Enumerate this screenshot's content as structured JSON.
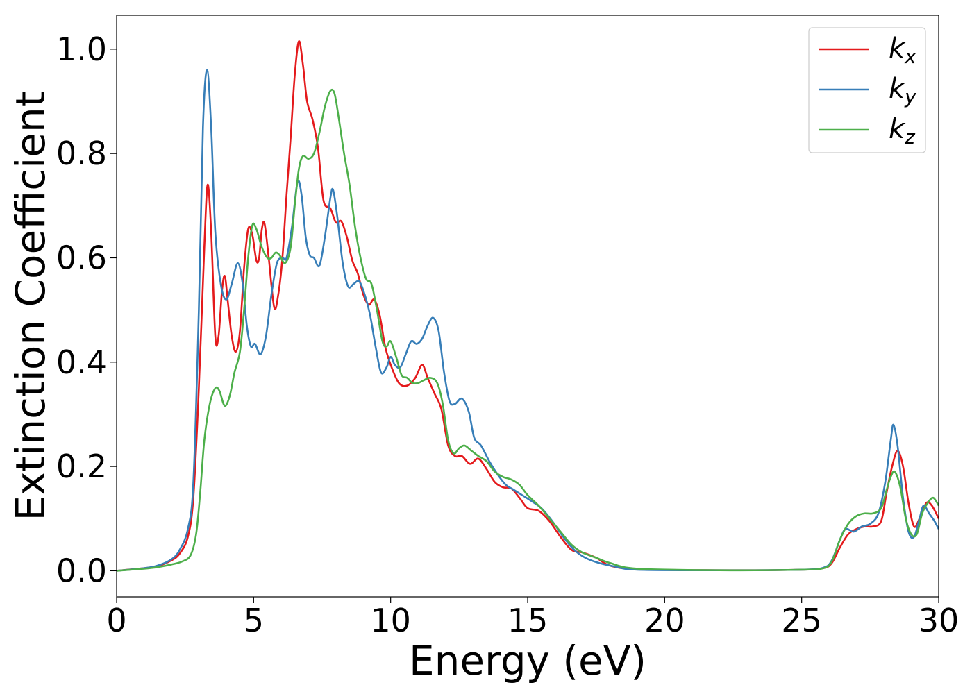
{
  "chart_data": {
    "type": "line",
    "xlabel": "Energy (eV)",
    "ylabel": "Extinction Coefficient",
    "xlim": [
      0,
      30
    ],
    "ylim": [
      -0.05,
      1.065
    ],
    "xticks": [
      0,
      5,
      10,
      15,
      20,
      25,
      30
    ],
    "xtick_labels": [
      "0",
      "5",
      "10",
      "15",
      "20",
      "25",
      "30"
    ],
    "yticks": [
      0.0,
      0.2,
      0.4,
      0.6,
      0.8,
      1.0
    ],
    "ytick_labels": [
      "0.0",
      "0.2",
      "0.4",
      "0.6",
      "0.8",
      "1.0"
    ],
    "grid": false,
    "legend_position": "top-right",
    "series": [
      {
        "name": "k",
        "subscript": "x",
        "color": "#e41a1c",
        "points": [
          [
            0,
            0.0
          ],
          [
            1,
            0.005
          ],
          [
            1.5,
            0.009
          ],
          [
            2,
            0.02
          ],
          [
            2.3,
            0.033
          ],
          [
            2.6,
            0.065
          ],
          [
            2.8,
            0.14
          ],
          [
            3.0,
            0.35
          ],
          [
            3.2,
            0.62
          ],
          [
            3.32,
            0.74
          ],
          [
            3.45,
            0.65
          ],
          [
            3.6,
            0.45
          ],
          [
            3.72,
            0.45
          ],
          [
            3.85,
            0.54
          ],
          [
            3.95,
            0.565
          ],
          [
            4.05,
            0.52
          ],
          [
            4.2,
            0.45
          ],
          [
            4.35,
            0.42
          ],
          [
            4.5,
            0.46
          ],
          [
            4.65,
            0.58
          ],
          [
            4.8,
            0.655
          ],
          [
            4.95,
            0.645
          ],
          [
            5.1,
            0.595
          ],
          [
            5.2,
            0.6
          ],
          [
            5.3,
            0.655
          ],
          [
            5.4,
            0.665
          ],
          [
            5.55,
            0.6
          ],
          [
            5.75,
            0.505
          ],
          [
            5.9,
            0.53
          ],
          [
            6.05,
            0.6
          ],
          [
            6.2,
            0.72
          ],
          [
            6.35,
            0.83
          ],
          [
            6.5,
            0.95
          ],
          [
            6.65,
            1.015
          ],
          [
            6.8,
            0.97
          ],
          [
            6.95,
            0.9
          ],
          [
            7.15,
            0.865
          ],
          [
            7.35,
            0.81
          ],
          [
            7.55,
            0.71
          ],
          [
            7.8,
            0.695
          ],
          [
            8.0,
            0.668
          ],
          [
            8.2,
            0.67
          ],
          [
            8.4,
            0.64
          ],
          [
            8.6,
            0.595
          ],
          [
            8.8,
            0.57
          ],
          [
            9.0,
            0.53
          ],
          [
            9.2,
            0.51
          ],
          [
            9.4,
            0.52
          ],
          [
            9.6,
            0.49
          ],
          [
            9.8,
            0.43
          ],
          [
            10.0,
            0.395
          ],
          [
            10.3,
            0.36
          ],
          [
            10.6,
            0.355
          ],
          [
            10.9,
            0.37
          ],
          [
            11.15,
            0.395
          ],
          [
            11.35,
            0.37
          ],
          [
            11.6,
            0.34
          ],
          [
            11.85,
            0.31
          ],
          [
            12.1,
            0.24
          ],
          [
            12.35,
            0.22
          ],
          [
            12.6,
            0.22
          ],
          [
            12.9,
            0.205
          ],
          [
            13.2,
            0.215
          ],
          [
            13.5,
            0.195
          ],
          [
            13.8,
            0.17
          ],
          [
            14.1,
            0.16
          ],
          [
            14.4,
            0.158
          ],
          [
            14.7,
            0.14
          ],
          [
            15.0,
            0.12
          ],
          [
            15.4,
            0.115
          ],
          [
            15.8,
            0.095
          ],
          [
            16.2,
            0.065
          ],
          [
            16.6,
            0.04
          ],
          [
            17.0,
            0.035
          ],
          [
            17.5,
            0.025
          ],
          [
            18.0,
            0.01
          ],
          [
            19.0,
            0.003
          ],
          [
            22.0,
            0.001
          ],
          [
            25.0,
            0.002
          ],
          [
            25.8,
            0.005
          ],
          [
            26.1,
            0.015
          ],
          [
            26.4,
            0.045
          ],
          [
            26.7,
            0.07
          ],
          [
            27.0,
            0.08
          ],
          [
            27.3,
            0.085
          ],
          [
            27.6,
            0.085
          ],
          [
            27.9,
            0.095
          ],
          [
            28.1,
            0.15
          ],
          [
            28.3,
            0.2
          ],
          [
            28.5,
            0.23
          ],
          [
            28.7,
            0.2
          ],
          [
            28.9,
            0.13
          ],
          [
            29.1,
            0.085
          ],
          [
            29.3,
            0.1
          ],
          [
            29.55,
            0.13
          ],
          [
            29.75,
            0.125
          ],
          [
            30.0,
            0.1
          ]
        ]
      },
      {
        "name": "k",
        "subscript": "y",
        "color": "#377eb8",
        "points": [
          [
            0,
            0.0
          ],
          [
            1,
            0.005
          ],
          [
            1.5,
            0.01
          ],
          [
            2,
            0.022
          ],
          [
            2.3,
            0.04
          ],
          [
            2.6,
            0.08
          ],
          [
            2.8,
            0.17
          ],
          [
            3.0,
            0.5
          ],
          [
            3.15,
            0.85
          ],
          [
            3.3,
            0.96
          ],
          [
            3.45,
            0.85
          ],
          [
            3.6,
            0.65
          ],
          [
            3.8,
            0.55
          ],
          [
            4.0,
            0.52
          ],
          [
            4.2,
            0.55
          ],
          [
            4.42,
            0.59
          ],
          [
            4.6,
            0.55
          ],
          [
            4.75,
            0.47
          ],
          [
            4.9,
            0.43
          ],
          [
            5.05,
            0.435
          ],
          [
            5.25,
            0.415
          ],
          [
            5.45,
            0.45
          ],
          [
            5.65,
            0.53
          ],
          [
            5.85,
            0.59
          ],
          [
            6.05,
            0.6
          ],
          [
            6.2,
            0.6
          ],
          [
            6.4,
            0.66
          ],
          [
            6.6,
            0.745
          ],
          [
            6.75,
            0.72
          ],
          [
            6.9,
            0.64
          ],
          [
            7.05,
            0.605
          ],
          [
            7.2,
            0.6
          ],
          [
            7.4,
            0.585
          ],
          [
            7.6,
            0.64
          ],
          [
            7.8,
            0.715
          ],
          [
            7.9,
            0.73
          ],
          [
            8.05,
            0.68
          ],
          [
            8.25,
            0.59
          ],
          [
            8.45,
            0.545
          ],
          [
            8.65,
            0.55
          ],
          [
            8.85,
            0.555
          ],
          [
            9.05,
            0.53
          ],
          [
            9.25,
            0.49
          ],
          [
            9.45,
            0.43
          ],
          [
            9.65,
            0.38
          ],
          [
            9.85,
            0.39
          ],
          [
            10.0,
            0.41
          ],
          [
            10.15,
            0.395
          ],
          [
            10.35,
            0.39
          ],
          [
            10.55,
            0.415
          ],
          [
            10.75,
            0.44
          ],
          [
            10.95,
            0.435
          ],
          [
            11.15,
            0.445
          ],
          [
            11.35,
            0.47
          ],
          [
            11.55,
            0.485
          ],
          [
            11.75,
            0.46
          ],
          [
            11.95,
            0.38
          ],
          [
            12.15,
            0.325
          ],
          [
            12.35,
            0.32
          ],
          [
            12.6,
            0.33
          ],
          [
            12.85,
            0.305
          ],
          [
            13.05,
            0.255
          ],
          [
            13.3,
            0.24
          ],
          [
            13.6,
            0.21
          ],
          [
            13.9,
            0.185
          ],
          [
            14.2,
            0.165
          ],
          [
            14.5,
            0.155
          ],
          [
            14.8,
            0.145
          ],
          [
            15.1,
            0.135
          ],
          [
            15.5,
            0.12
          ],
          [
            15.9,
            0.095
          ],
          [
            16.3,
            0.065
          ],
          [
            16.7,
            0.04
          ],
          [
            17.1,
            0.025
          ],
          [
            17.6,
            0.015
          ],
          [
            18.2,
            0.008
          ],
          [
            19.0,
            0.002
          ],
          [
            22.0,
            0.001
          ],
          [
            25.0,
            0.002
          ],
          [
            25.8,
            0.006
          ],
          [
            26.1,
            0.02
          ],
          [
            26.4,
            0.06
          ],
          [
            26.6,
            0.08
          ],
          [
            26.9,
            0.075
          ],
          [
            27.2,
            0.085
          ],
          [
            27.5,
            0.09
          ],
          [
            27.8,
            0.11
          ],
          [
            28.05,
            0.17
          ],
          [
            28.25,
            0.25
          ],
          [
            28.35,
            0.28
          ],
          [
            28.5,
            0.24
          ],
          [
            28.7,
            0.14
          ],
          [
            28.9,
            0.075
          ],
          [
            29.1,
            0.065
          ],
          [
            29.3,
            0.1
          ],
          [
            29.45,
            0.125
          ],
          [
            29.65,
            0.11
          ],
          [
            29.85,
            0.095
          ],
          [
            30.0,
            0.08
          ]
        ]
      },
      {
        "name": "k",
        "subscript": "z",
        "color": "#4daf4a",
        "points": [
          [
            0,
            0.0
          ],
          [
            1,
            0.004
          ],
          [
            1.5,
            0.007
          ],
          [
            2,
            0.012
          ],
          [
            2.4,
            0.018
          ],
          [
            2.7,
            0.03
          ],
          [
            2.9,
            0.07
          ],
          [
            3.05,
            0.15
          ],
          [
            3.2,
            0.25
          ],
          [
            3.4,
            0.32
          ],
          [
            3.6,
            0.35
          ],
          [
            3.75,
            0.345
          ],
          [
            3.9,
            0.32
          ],
          [
            4.0,
            0.318
          ],
          [
            4.15,
            0.34
          ],
          [
            4.3,
            0.38
          ],
          [
            4.5,
            0.42
          ],
          [
            4.65,
            0.5
          ],
          [
            4.8,
            0.6
          ],
          [
            4.95,
            0.662
          ],
          [
            5.1,
            0.655
          ],
          [
            5.3,
            0.62
          ],
          [
            5.5,
            0.6
          ],
          [
            5.65,
            0.6
          ],
          [
            5.8,
            0.61
          ],
          [
            5.95,
            0.605
          ],
          [
            6.15,
            0.59
          ],
          [
            6.35,
            0.62
          ],
          [
            6.5,
            0.7
          ],
          [
            6.65,
            0.77
          ],
          [
            6.8,
            0.795
          ],
          [
            7.0,
            0.79
          ],
          [
            7.2,
            0.8
          ],
          [
            7.4,
            0.84
          ],
          [
            7.6,
            0.89
          ],
          [
            7.8,
            0.92
          ],
          [
            7.95,
            0.915
          ],
          [
            8.1,
            0.87
          ],
          [
            8.3,
            0.8
          ],
          [
            8.5,
            0.74
          ],
          [
            8.7,
            0.66
          ],
          [
            8.9,
            0.6
          ],
          [
            9.1,
            0.56
          ],
          [
            9.3,
            0.55
          ],
          [
            9.5,
            0.5
          ],
          [
            9.7,
            0.44
          ],
          [
            9.85,
            0.43
          ],
          [
            10.0,
            0.44
          ],
          [
            10.2,
            0.41
          ],
          [
            10.4,
            0.375
          ],
          [
            10.6,
            0.37
          ],
          [
            10.8,
            0.36
          ],
          [
            11.0,
            0.36
          ],
          [
            11.2,
            0.365
          ],
          [
            11.45,
            0.37
          ],
          [
            11.7,
            0.36
          ],
          [
            11.9,
            0.32
          ],
          [
            12.1,
            0.25
          ],
          [
            12.3,
            0.225
          ],
          [
            12.5,
            0.235
          ],
          [
            12.7,
            0.24
          ],
          [
            12.95,
            0.23
          ],
          [
            13.2,
            0.22
          ],
          [
            13.5,
            0.21
          ],
          [
            13.8,
            0.19
          ],
          [
            14.1,
            0.18
          ],
          [
            14.4,
            0.175
          ],
          [
            14.7,
            0.165
          ],
          [
            15.0,
            0.145
          ],
          [
            15.4,
            0.125
          ],
          [
            15.8,
            0.1
          ],
          [
            16.2,
            0.075
          ],
          [
            16.6,
            0.05
          ],
          [
            17.0,
            0.035
          ],
          [
            17.5,
            0.025
          ],
          [
            18.0,
            0.015
          ],
          [
            19.0,
            0.004
          ],
          [
            22.0,
            0.001
          ],
          [
            25.0,
            0.002
          ],
          [
            25.8,
            0.005
          ],
          [
            26.1,
            0.018
          ],
          [
            26.4,
            0.06
          ],
          [
            26.7,
            0.09
          ],
          [
            27.0,
            0.105
          ],
          [
            27.3,
            0.11
          ],
          [
            27.6,
            0.11
          ],
          [
            27.9,
            0.12
          ],
          [
            28.1,
            0.155
          ],
          [
            28.25,
            0.18
          ],
          [
            28.4,
            0.19
          ],
          [
            28.6,
            0.16
          ],
          [
            28.8,
            0.1
          ],
          [
            29.0,
            0.07
          ],
          [
            29.2,
            0.07
          ],
          [
            29.4,
            0.11
          ],
          [
            29.6,
            0.13
          ],
          [
            29.8,
            0.14
          ],
          [
            30.0,
            0.125
          ]
        ]
      }
    ]
  }
}
